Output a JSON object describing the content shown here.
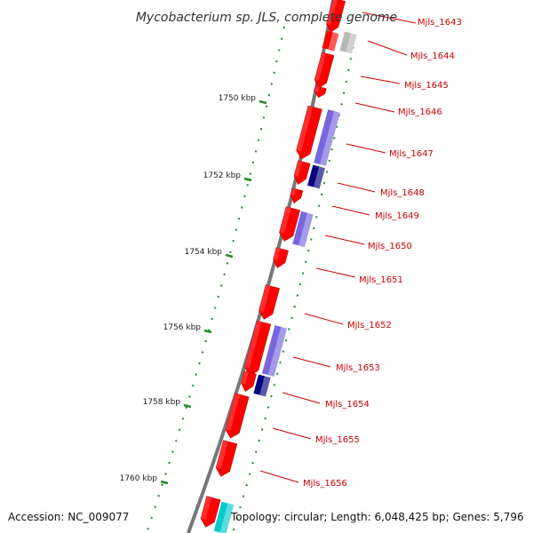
{
  "title": "Mycobacterium sp. JLS, complete genome",
  "accession_text": "Accession: NC_009077",
  "topology_text": "Topology: circular; Length: 6,048,425 bp; Genes: 5,796",
  "colors": {
    "forward_gene": "#ff0000",
    "protein_blue": "#7766dd",
    "protein_navy": "#000080",
    "gray_feature": "#b8b8b8",
    "cyan_feature": "#00cccc",
    "backbone": "#777777",
    "tick": "#228b22",
    "label": "#cc0000"
  },
  "ticks": [
    {
      "label": "1750 kbp"
    },
    {
      "label": "1752 kbp"
    },
    {
      "label": "1754 kbp"
    },
    {
      "label": "1756 kbp"
    },
    {
      "label": "1758 kbp"
    },
    {
      "label": "1760 kbp"
    }
  ],
  "genes": [
    {
      "label": "Mjls_1643"
    },
    {
      "label": "Mjls_1644"
    },
    {
      "label": "Mjls_1645"
    },
    {
      "label": "Mjls_1646"
    },
    {
      "label": "Mjls_1647"
    },
    {
      "label": "Mjls_1648"
    },
    {
      "label": "Mjls_1649"
    },
    {
      "label": "Mjls_1650"
    },
    {
      "label": "Mjls_1651"
    },
    {
      "label": "Mjls_1652"
    },
    {
      "label": "Mjls_1653"
    },
    {
      "label": "Mjls_1654"
    },
    {
      "label": "Mjls_1655"
    },
    {
      "label": "Mjls_1656"
    }
  ]
}
